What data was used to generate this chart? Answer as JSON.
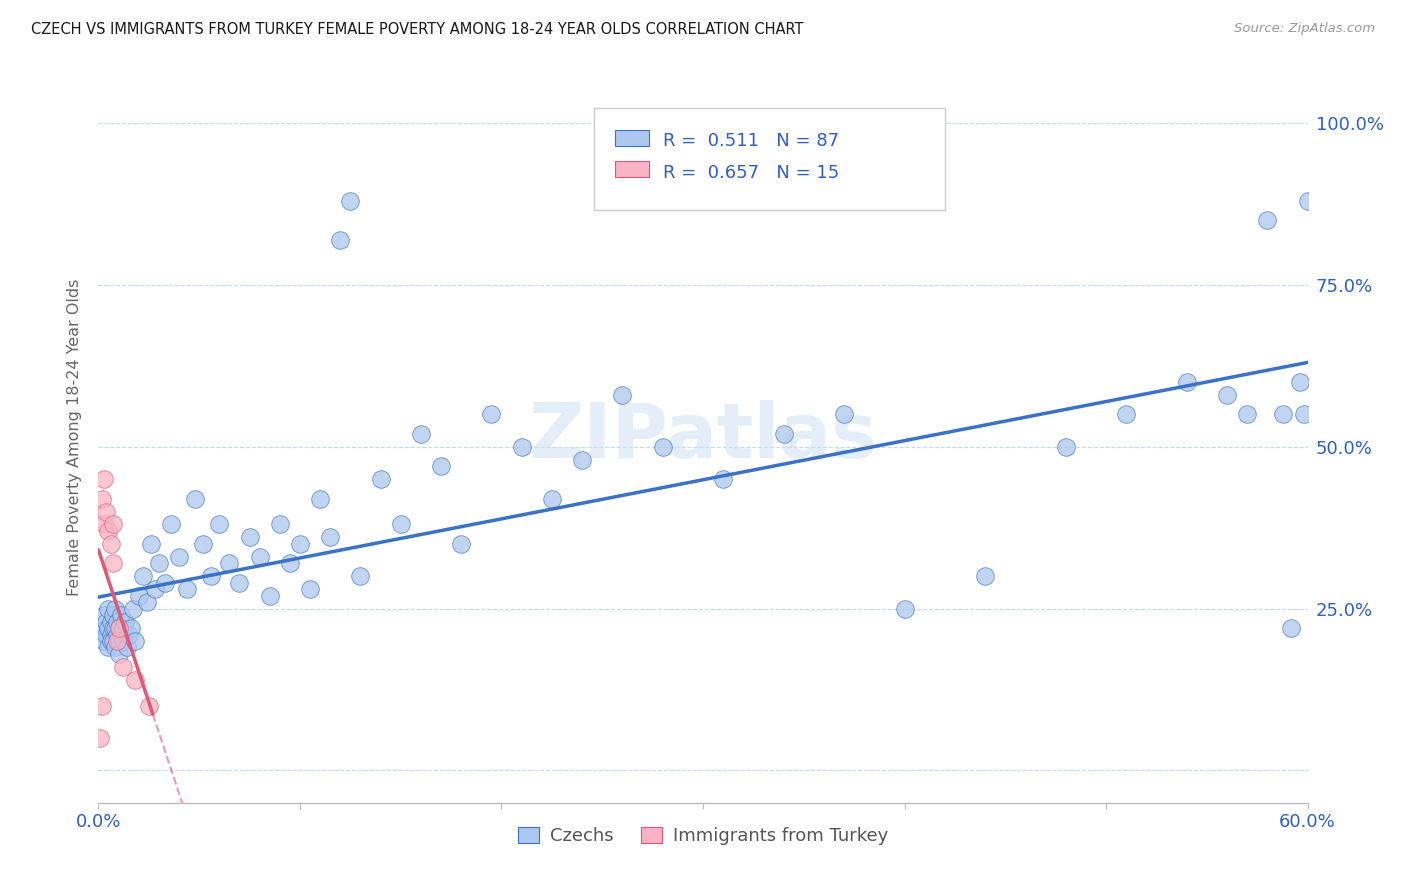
{
  "title": "CZECH VS IMMIGRANTS FROM TURKEY FEMALE POVERTY AMONG 18-24 YEAR OLDS CORRELATION CHART",
  "source": "Source: ZipAtlas.com",
  "ylabel": "Female Poverty Among 18-24 Year Olds",
  "r_czech": 0.511,
  "n_czech": 87,
  "r_turkey": 0.657,
  "n_turkey": 15,
  "czech_color": "#adc8f0",
  "turkey_color": "#f8b4c4",
  "line_czech_color": "#3a72c8",
  "line_turkey_color": "#e05878",
  "legend_text_color": "#3060c0",
  "watermark_color": "#cce0f5",
  "czech_x": [
    0.002,
    0.003,
    0.003,
    0.004,
    0.004,
    0.005,
    0.005,
    0.005,
    0.006,
    0.006,
    0.006,
    0.007,
    0.007,
    0.007,
    0.008,
    0.008,
    0.008,
    0.009,
    0.009,
    0.01,
    0.01,
    0.01,
    0.011,
    0.011,
    0.012,
    0.012,
    0.013,
    0.014,
    0.015,
    0.016,
    0.017,
    0.018,
    0.02,
    0.022,
    0.024,
    0.026,
    0.028,
    0.03,
    0.033,
    0.036,
    0.04,
    0.044,
    0.048,
    0.052,
    0.056,
    0.06,
    0.065,
    0.07,
    0.075,
    0.08,
    0.085,
    0.09,
    0.095,
    0.1,
    0.105,
    0.11,
    0.115,
    0.12,
    0.125,
    0.13,
    0.14,
    0.15,
    0.16,
    0.17,
    0.18,
    0.195,
    0.21,
    0.225,
    0.24,
    0.26,
    0.28,
    0.31,
    0.34,
    0.37,
    0.4,
    0.44,
    0.48,
    0.51,
    0.54,
    0.56,
    0.57,
    0.58,
    0.588,
    0.592,
    0.596,
    0.598,
    0.6
  ],
  "czech_y": [
    0.22,
    0.2,
    0.24,
    0.21,
    0.23,
    0.19,
    0.22,
    0.25,
    0.21,
    0.23,
    0.2,
    0.22,
    0.24,
    0.2,
    0.22,
    0.25,
    0.19,
    0.23,
    0.21,
    0.2,
    0.22,
    0.18,
    0.24,
    0.21,
    0.22,
    0.2,
    0.23,
    0.19,
    0.21,
    0.22,
    0.25,
    0.2,
    0.27,
    0.3,
    0.26,
    0.35,
    0.28,
    0.32,
    0.29,
    0.38,
    0.33,
    0.28,
    0.42,
    0.35,
    0.3,
    0.38,
    0.32,
    0.29,
    0.36,
    0.33,
    0.27,
    0.38,
    0.32,
    0.35,
    0.28,
    0.42,
    0.36,
    0.82,
    0.88,
    0.3,
    0.45,
    0.38,
    0.52,
    0.47,
    0.35,
    0.55,
    0.5,
    0.42,
    0.48,
    0.58,
    0.5,
    0.45,
    0.52,
    0.55,
    0.25,
    0.3,
    0.5,
    0.55,
    0.6,
    0.58,
    0.55,
    0.85,
    0.55,
    0.22,
    0.6,
    0.55,
    0.88
  ],
  "turkey_x": [
    0.001,
    0.002,
    0.002,
    0.003,
    0.003,
    0.004,
    0.005,
    0.006,
    0.007,
    0.007,
    0.009,
    0.01,
    0.012,
    0.018,
    0.025
  ],
  "turkey_y": [
    0.05,
    0.1,
    0.42,
    0.38,
    0.45,
    0.4,
    0.37,
    0.35,
    0.32,
    0.38,
    0.2,
    0.22,
    0.16,
    0.14,
    0.1
  ],
  "xlim": [
    0.0,
    0.6
  ],
  "ylim": [
    -0.05,
    1.08
  ],
  "ytick_vals": [
    0.0,
    0.25,
    0.5,
    0.75,
    1.0
  ],
  "ytick_labels": [
    "",
    "25.0%",
    "50.0%",
    "75.0%",
    "100.0%"
  ],
  "xtick_left_label": "0.0%",
  "xtick_right_label": "60.0%"
}
